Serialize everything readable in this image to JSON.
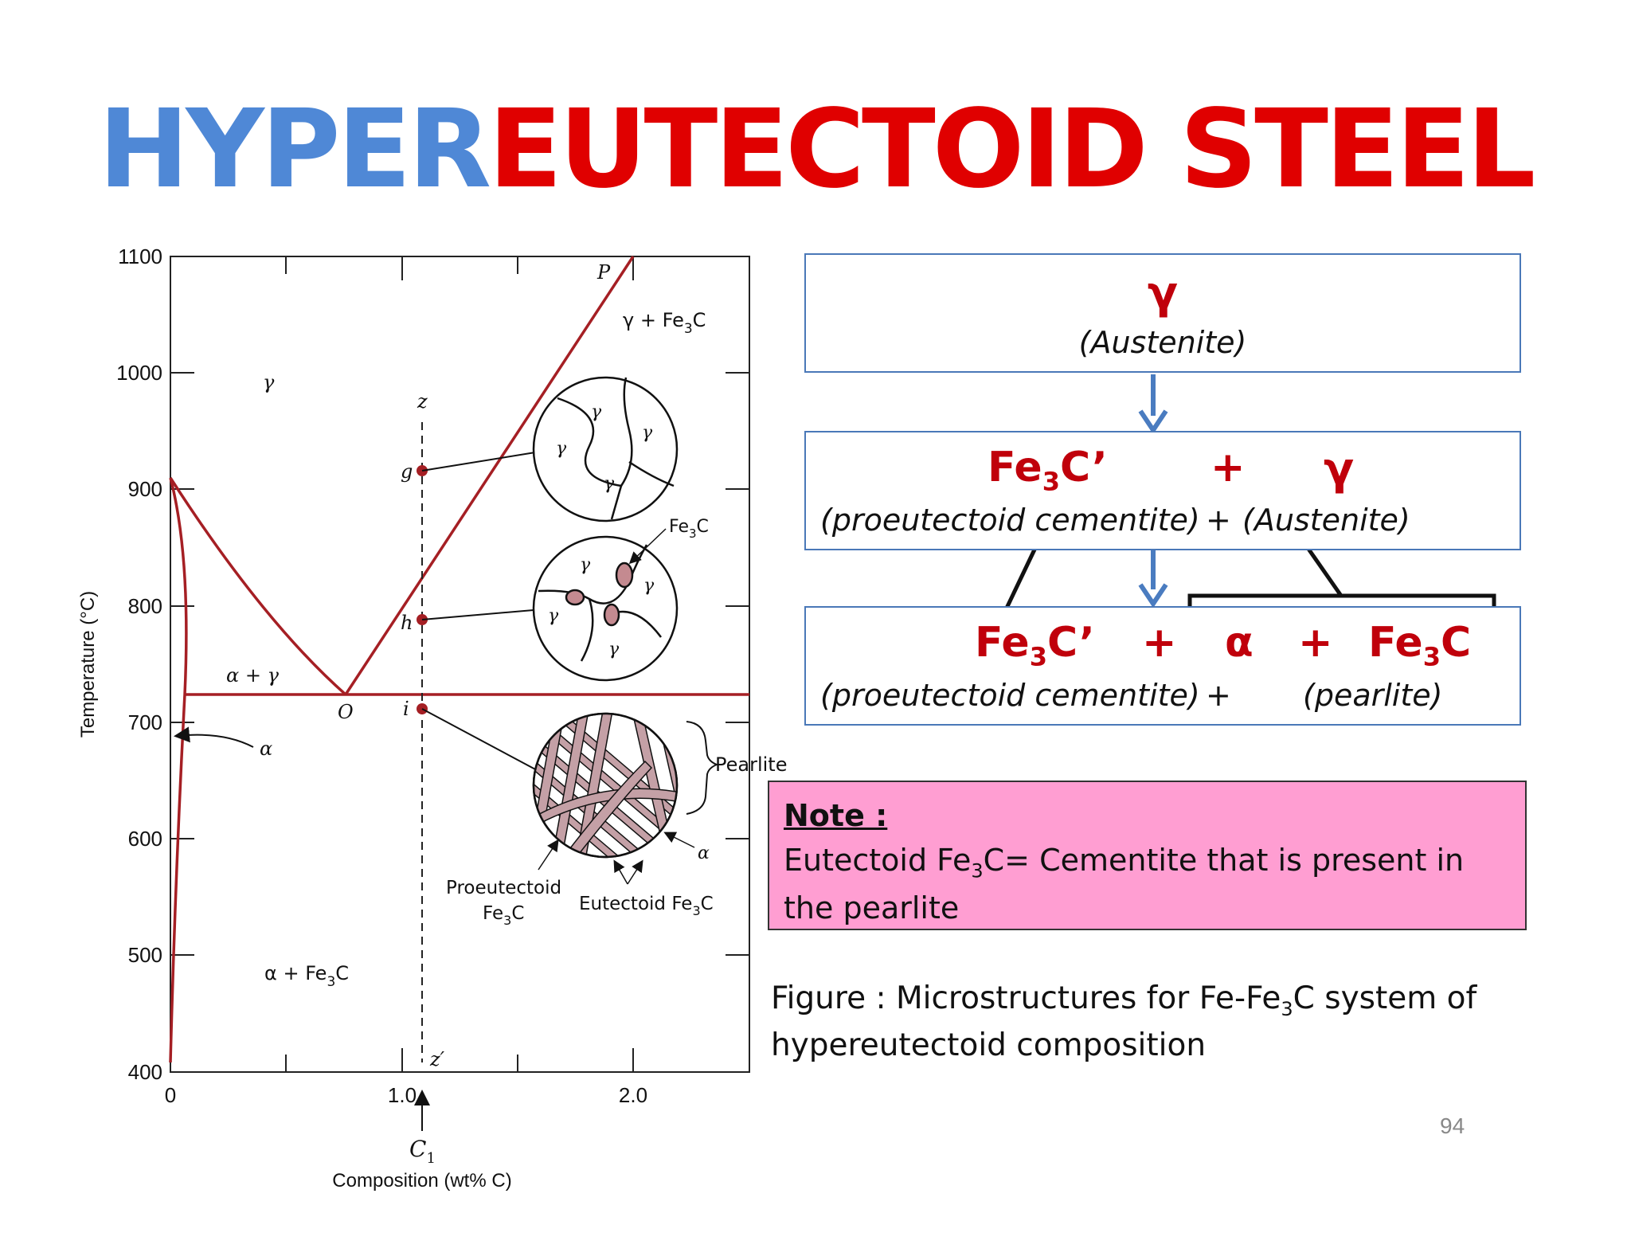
{
  "title": {
    "part1": "HYPER",
    "part2": "EUTECTOID STEEL"
  },
  "diagram": {
    "y_axis_label": "Temperature (°C)",
    "x_axis_label": "Composition (wt% C)",
    "y_ticks": [
      "1100",
      "1000",
      "900",
      "800",
      "700",
      "600",
      "500",
      "400"
    ],
    "x_ticks": [
      "0",
      "1.0",
      "2.0"
    ],
    "x_marker": "C",
    "x_marker_sub": "1",
    "regions": {
      "gamma": "γ",
      "gamma_fe3c": "γ + Fe",
      "gamma_fe3c_end": "C",
      "alpha_gamma": "α + γ",
      "alpha": "α",
      "alpha_fe3c": "α + Fe",
      "alpha_fe3c_end": "C"
    },
    "point_labels": {
      "P": "P",
      "O": "O",
      "z": "z",
      "z_prime": "z′",
      "g": "g",
      "h": "h",
      "i": "i"
    },
    "micro_labels": {
      "gamma": "γ",
      "alpha": "α",
      "fe3c": "Fe",
      "fe3c_end": "C",
      "pearlite": "Pearlite",
      "proeutectoid_1": "Proeutectoid",
      "proeutectoid_2": "Fe",
      "proeutectoid_2_end": "C",
      "eutectoid": "Eutectoid Fe",
      "eutectoid_end": "C",
      "sub3": "3"
    }
  },
  "flow": {
    "box1": {
      "symbol": "γ",
      "name": "(Austenite)"
    },
    "box2": {
      "sym1": "Fe",
      "sym1_sub": "3",
      "sym1_end": "C’",
      "plus": "+",
      "sym2": "γ",
      "desc1": "(proeutectoid cementite)",
      "desc_plus": "+",
      "desc2": "(Austenite)"
    },
    "box3": {
      "sym1": "Fe",
      "sym1_sub": "3",
      "sym1_end": "C’",
      "plus1": "+",
      "sym2": "α",
      "plus2": "+",
      "sym3": "Fe",
      "sym3_sub": "3",
      "sym3_end": "C",
      "desc1": "(proeutectoid cementite)",
      "desc_plus": "+",
      "desc2": "(pearlite)"
    }
  },
  "note": {
    "heading": "Note :",
    "line1a": "Eutectoid Fe",
    "line1sub": "3",
    "line1b": "C= Cementite that is present in",
    "line2": "the pearlite"
  },
  "caption": {
    "a": "Figure : Microstructures for Fe-Fe",
    "sub": "3",
    "b": "C system of",
    "c": "hypereutectoid composition"
  },
  "page_number": "94",
  "colors": {
    "blue_title": "#4f88d6",
    "red_title": "#e00000",
    "curve": "#a51f24",
    "note_bg": "#ff9ed2",
    "box_border": "#4a78b8",
    "arrow": "#4a7cc0"
  }
}
